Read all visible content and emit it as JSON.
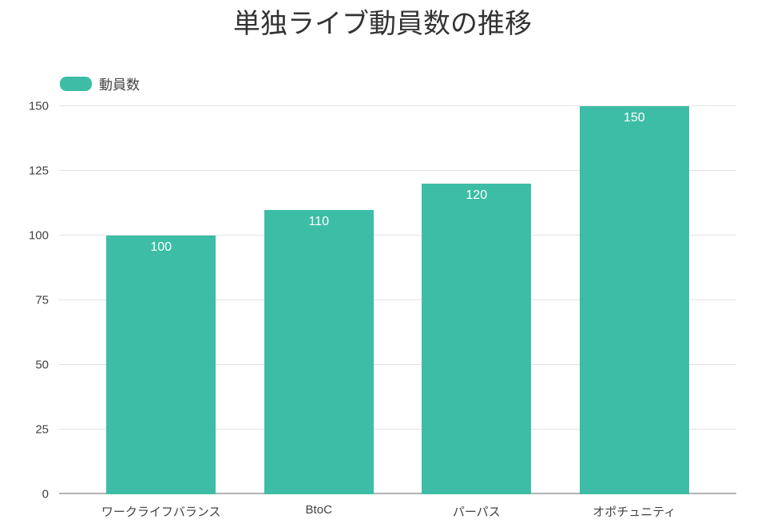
{
  "chart_data": {
    "type": "bar",
    "title": "単独ライブ動員数の推移",
    "categories": [
      "ワークライフバランス",
      "BtoC",
      "パーパス",
      "オポチュニティ"
    ],
    "series": [
      {
        "name": "動員数",
        "values": [
          100,
          110,
          120,
          150
        ]
      }
    ],
    "xlabel": "",
    "ylabel": "",
    "ylim": [
      0,
      150
    ],
    "yticks": [
      0,
      25,
      50,
      75,
      100,
      125,
      150
    ],
    "grid": true,
    "legend_position": "top-left",
    "value_labels_inside_bars": true,
    "colors": {
      "bar": "#3dbda6",
      "value_label": "#ffffff",
      "title_text": "#333333",
      "axis_text": "#424242",
      "gridline": "#e3e3e3",
      "baseline": "#b3b3b3",
      "background": "#ffffff"
    }
  },
  "legend": {
    "label": "動員数",
    "swatch_icon": "teal-rounded-rect"
  }
}
